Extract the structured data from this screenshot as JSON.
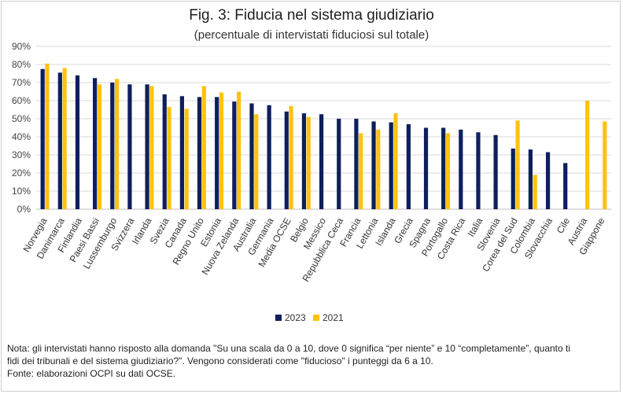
{
  "title": "Fig. 3: Fiducia nel sistema giudiziario",
  "subtitle": "(percentuale di intervistati fiduciosi sul totale)",
  "colors": {
    "s2023": "#0d1f5c",
    "s2021": "#ffc20e",
    "grid": "#d9d9d9",
    "axis": "#bfbfbf"
  },
  "chart_data": {
    "type": "bar",
    "ylim": [
      0,
      90
    ],
    "yticks": [
      "0%",
      "10%",
      "20%",
      "30%",
      "40%",
      "50%",
      "60%",
      "70%",
      "80%",
      "90%"
    ],
    "grid": true,
    "legend_position": "bottom",
    "categories": [
      "Norvegia",
      "Danimarca",
      "Finlandia",
      "Paesi Bassi",
      "Lussemburgo",
      "Svizzera",
      "Irlanda",
      "Svezia",
      "Canada",
      "Regno Unito",
      "Estonia",
      "Nuova Zelanda",
      "Australia",
      "Germania",
      "Media OCSE",
      "Belgio",
      "Messico",
      "Repubblica Ceca",
      "Francia",
      "Lettonia",
      "Islanda",
      "Grecia",
      "Spagna",
      "Portogallo",
      "Costa Rica",
      "Italia",
      "Slovenia",
      "Corea del Sud",
      "Colombia",
      "Slovacchia",
      "Cile",
      "Austria",
      "Giappone"
    ],
    "series": [
      {
        "name": "2023",
        "values": [
          77.5,
          75.5,
          74,
          72.5,
          70,
          69,
          69,
          63.5,
          62.5,
          62,
          62,
          59.5,
          58.5,
          57.5,
          54,
          53,
          52.5,
          50,
          50,
          48.5,
          48,
          47,
          45,
          45,
          44,
          42.5,
          41,
          33.5,
          33,
          31.5,
          25.5,
          null,
          null
        ]
      },
      {
        "name": "2021",
        "values": [
          80.5,
          78,
          null,
          69,
          72,
          null,
          68,
          56.5,
          55.5,
          68,
          64.5,
          65,
          52.5,
          null,
          57,
          51,
          null,
          null,
          42,
          44,
          53,
          null,
          null,
          42,
          null,
          null,
          null,
          49,
          19,
          null,
          null,
          60,
          48.5
        ]
      }
    ]
  },
  "note": {
    "line1": "Nota: gli intervistati hanno risposto alla domanda \"Su una scala da 0 a 10, dove 0 significa “per niente” e 10 “completamente”, quanto ti",
    "line2": "fidi dei tribunali e del sistema giudiziario?\". Vengono considerati come \"fiducioso\" i punteggi da 6 a 10.",
    "line3": "Fonte: elaborazioni OCPI su dati OCSE."
  }
}
